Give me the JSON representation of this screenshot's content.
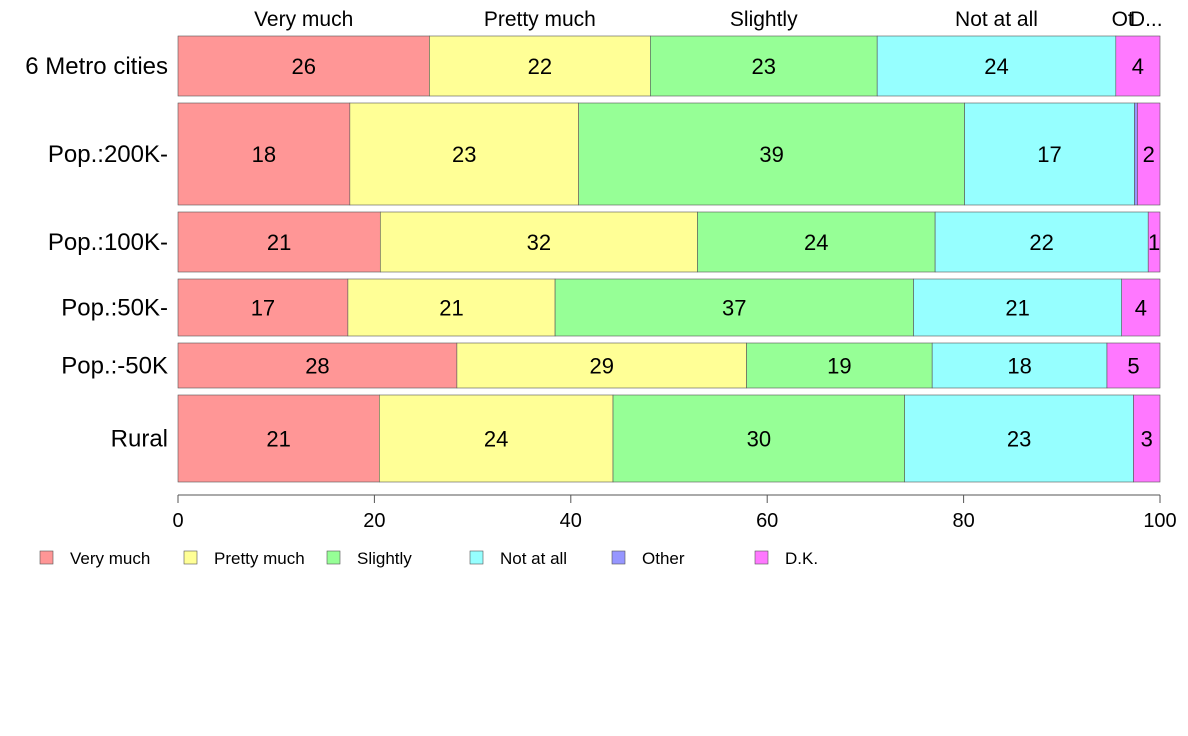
{
  "chart_data": {
    "type": "bar",
    "orientation": "horizontal",
    "stacked": true,
    "categories": [
      "6 Metro cities",
      "Pop.:200K-",
      "Pop.:100K-",
      "Pop.:50K-",
      "Pop.:-50K",
      "Rural"
    ],
    "category_widths": [
      1.0,
      1.7,
      1.0,
      0.95,
      0.75,
      1.45
    ],
    "series": [
      {
        "name": "Very much",
        "color": "#ff9696",
        "values": [
          25.6,
          17.5,
          20.6,
          17.3,
          28.4,
          20.5
        ]
      },
      {
        "name": "Pretty much",
        "color": "#ffff96",
        "values": [
          22.5,
          23.3,
          32.3,
          21.1,
          29.5,
          23.8
        ]
      },
      {
        "name": "Slightly",
        "color": "#96ff96",
        "values": [
          23.1,
          39.3,
          24.2,
          36.5,
          18.9,
          29.7
        ]
      },
      {
        "name": "Not at all",
        "color": "#96ffff",
        "values": [
          24.3,
          17.3,
          21.7,
          21.2,
          17.8,
          23.3
        ]
      },
      {
        "name": "Other",
        "color": "#9696ff",
        "values": [
          0.0,
          0.3,
          0.0,
          0.0,
          0.0,
          0.0
        ]
      },
      {
        "name": "D.K.",
        "color": "#ff78ff",
        "values": [
          4.5,
          2.3,
          1.2,
          3.9,
          5.4,
          2.7
        ]
      }
    ],
    "data_labels": [
      [
        "26",
        "22",
        "23",
        "24",
        "",
        "4"
      ],
      [
        "18",
        "23",
        "39",
        "17",
        "",
        "2"
      ],
      [
        "21",
        "32",
        "24",
        "22",
        "",
        "1"
      ],
      [
        "17",
        "21",
        "37",
        "21",
        "",
        "4"
      ],
      [
        "28",
        "29",
        "19",
        "18",
        "",
        "5"
      ],
      [
        "21",
        "24",
        "30",
        "23",
        "",
        "3"
      ]
    ],
    "top_labels": [
      "Very much",
      "Pretty much",
      "Slightly",
      "Not at all",
      "Ot",
      "D..."
    ],
    "xlim": [
      0,
      100
    ],
    "xticks": [
      0,
      20,
      40,
      60,
      80,
      100
    ],
    "grid": false,
    "legend_position": "bottom-left"
  }
}
